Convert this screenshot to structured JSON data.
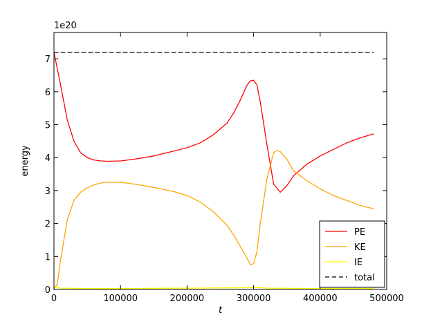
{
  "chart_data": {
    "type": "line",
    "xlabel": "t",
    "ylabel": "energy",
    "offset_label": "1e20",
    "xlim": [
      0,
      500000
    ],
    "ylim": [
      0,
      7.8
    ],
    "xticks": [
      0,
      100000,
      200000,
      300000,
      400000,
      500000
    ],
    "xtick_labels": [
      "0",
      "100000",
      "200000",
      "300000",
      "400000",
      "500000"
    ],
    "yticks": [
      0,
      1,
      2,
      3,
      4,
      5,
      6,
      7
    ],
    "ytick_labels": [
      "0",
      "1",
      "2",
      "3",
      "4",
      "5",
      "6",
      "7"
    ],
    "grid": false,
    "legend_position": "lower-right",
    "series": [
      {
        "name": "PE",
        "color": "#ff0000",
        "dash": "solid",
        "x": [
          0,
          10000,
          20000,
          30000,
          40000,
          50000,
          60000,
          70000,
          80000,
          100000,
          120000,
          150000,
          180000,
          200000,
          220000,
          240000,
          260000,
          270000,
          280000,
          290000,
          295000,
          300000,
          305000,
          310000,
          320000,
          330000,
          340000,
          350000,
          360000,
          380000,
          400000,
          420000,
          440000,
          460000,
          480000
        ],
        "y": [
          7.2,
          6.2,
          5.15,
          4.5,
          4.15,
          4.0,
          3.93,
          3.9,
          3.89,
          3.9,
          3.95,
          4.05,
          4.2,
          4.3,
          4.45,
          4.7,
          5.05,
          5.35,
          5.75,
          6.2,
          6.33,
          6.35,
          6.2,
          5.7,
          4.4,
          3.2,
          2.95,
          3.15,
          3.45,
          3.8,
          4.05,
          4.25,
          4.45,
          4.6,
          4.72
        ]
      },
      {
        "name": "KE",
        "color": "#ffa500",
        "dash": "solid",
        "x": [
          0,
          5000,
          10000,
          20000,
          30000,
          40000,
          50000,
          60000,
          70000,
          80000,
          100000,
          120000,
          150000,
          180000,
          200000,
          220000,
          240000,
          260000,
          270000,
          280000,
          290000,
          295000,
          300000,
          305000,
          310000,
          320000,
          330000,
          335000,
          340000,
          350000,
          360000,
          380000,
          400000,
          420000,
          440000,
          460000,
          480000
        ],
        "y": [
          0.02,
          0.15,
          0.9,
          2.1,
          2.7,
          2.95,
          3.08,
          3.17,
          3.23,
          3.25,
          3.25,
          3.2,
          3.1,
          2.97,
          2.85,
          2.65,
          2.35,
          1.95,
          1.65,
          1.3,
          0.95,
          0.75,
          0.78,
          1.15,
          2.0,
          3.35,
          4.15,
          4.22,
          4.18,
          3.95,
          3.6,
          3.3,
          3.05,
          2.85,
          2.7,
          2.55,
          2.45
        ]
      },
      {
        "name": "IE",
        "color": "#ffff00",
        "dash": "solid",
        "x": [
          0,
          3000,
          10000,
          50000,
          100000,
          200000,
          280000,
          300000,
          320000,
          400000,
          480000
        ],
        "y": [
          0.1,
          0.06,
          0.04,
          0.03,
          0.03,
          0.04,
          0.05,
          0.06,
          0.04,
          0.03,
          0.03
        ]
      },
      {
        "name": "total",
        "color": "#000000",
        "dash": "dashed",
        "x": [
          0,
          480000
        ],
        "y": [
          7.2,
          7.2
        ]
      }
    ]
  }
}
